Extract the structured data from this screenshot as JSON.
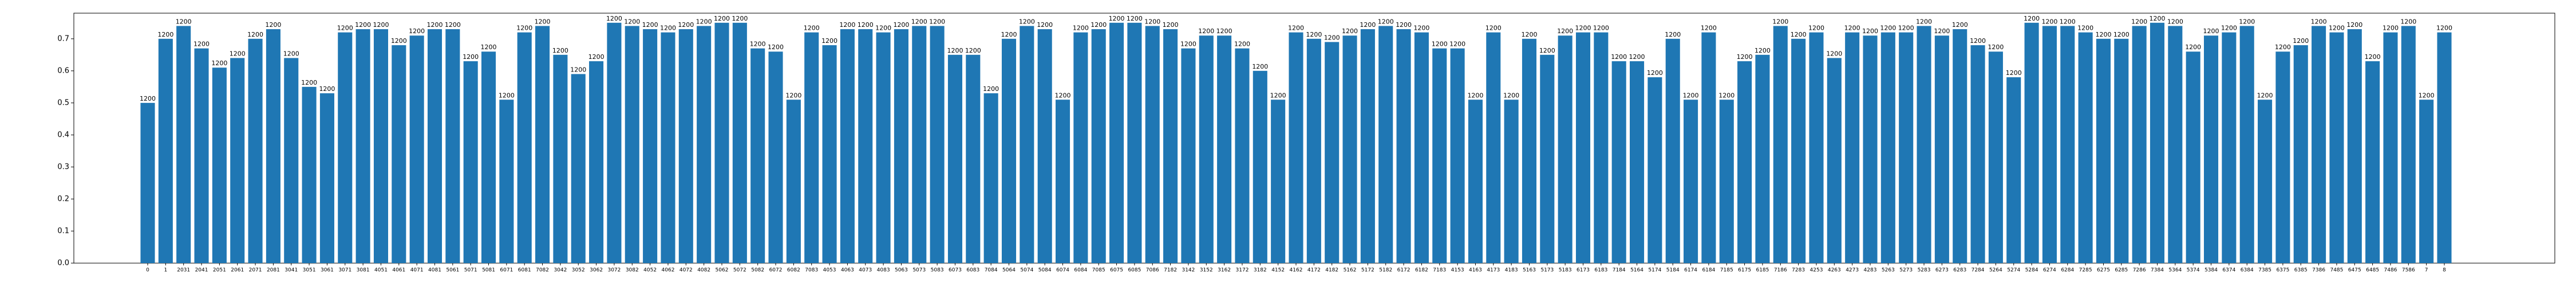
{
  "chart_data": {
    "type": "bar",
    "categories": [
      "0",
      "1",
      "2031",
      "2041",
      "2051",
      "2061",
      "2071",
      "2081",
      "3041",
      "3051",
      "3061",
      "3071",
      "3081",
      "4051",
      "4061",
      "4071",
      "4081",
      "5061",
      "5071",
      "5081",
      "6071",
      "6081",
      "7082",
      "3042",
      "3052",
      "3062",
      "3072",
      "3082",
      "4052",
      "4062",
      "4072",
      "4082",
      "5062",
      "5072",
      "5082",
      "6072",
      "6082",
      "7083",
      "4053",
      "4063",
      "4073",
      "4083",
      "5063",
      "5073",
      "5083",
      "6073",
      "6083",
      "7084",
      "5064",
      "5074",
      "5084",
      "6074",
      "6084",
      "7085",
      "6075",
      "6085",
      "7086",
      "7182",
      "3142",
      "3152",
      "3162",
      "3172",
      "3182",
      "4152",
      "4162",
      "4172",
      "4182",
      "5162",
      "5172",
      "5182",
      "6172",
      "6182",
      "7183",
      "4153",
      "4163",
      "4173",
      "4183",
      "5163",
      "5173",
      "5183",
      "6173",
      "6183",
      "7184",
      "5164",
      "5174",
      "5184",
      "6174",
      "6184",
      "7185",
      "6175",
      "6185",
      "7186",
      "7283",
      "4253",
      "4263",
      "4273",
      "4283",
      "5263",
      "5273",
      "5283",
      "6273",
      "6283",
      "7284",
      "5264",
      "5274",
      "5284",
      "6274",
      "6284",
      "7285",
      "6275",
      "6285",
      "7286",
      "7384",
      "5364",
      "5374",
      "5384",
      "6374",
      "6384",
      "7385",
      "6375",
      "6385",
      "7386",
      "7485",
      "6475",
      "6485",
      "7486",
      "7586",
      "7",
      "8"
    ],
    "values": [
      0.5,
      0.7,
      0.74,
      0.67,
      0.61,
      0.64,
      0.7,
      0.73,
      0.64,
      0.55,
      0.53,
      0.72,
      0.73,
      0.73,
      0.68,
      0.71,
      0.73,
      0.73,
      0.63,
      0.66,
      0.51,
      0.72,
      0.74,
      0.65,
      0.59,
      0.63,
      0.75,
      0.74,
      0.73,
      0.72,
      0.73,
      0.74,
      0.75,
      0.75,
      0.67,
      0.66,
      0.51,
      0.72,
      0.68,
      0.73,
      0.73,
      0.72,
      0.73,
      0.74,
      0.74,
      0.65,
      0.65,
      0.53,
      0.7,
      0.74,
      0.73,
      0.51,
      0.72,
      0.73,
      0.75,
      0.75,
      0.74,
      0.73,
      0.67,
      0.71,
      0.71,
      0.67,
      0.6,
      0.51,
      0.72,
      0.7,
      0.69,
      0.71,
      0.73,
      0.74,
      0.73,
      0.72,
      0.67,
      0.67,
      0.51,
      0.72,
      0.51,
      0.7,
      0.65,
      0.71,
      0.72,
      0.72,
      0.63,
      0.63,
      0.58,
      0.7,
      0.51,
      0.72,
      0.51,
      0.63,
      0.65,
      0.74,
      0.7,
      0.72,
      0.64,
      0.72,
      0.71,
      0.72,
      0.72,
      0.74,
      0.71,
      0.73,
      0.68,
      0.66,
      0.58,
      0.75,
      0.74,
      0.74,
      0.72,
      0.7,
      0.7,
      0.74,
      0.75,
      0.74,
      0.66,
      0.71,
      0.72,
      0.74,
      0.51,
      0.66,
      0.68,
      0.74,
      0.72,
      0.73,
      0.63,
      0.72,
      0.74,
      0.51,
      0.72
    ],
    "bar_labels": [
      1200,
      1200,
      1200,
      1200,
      1200,
      1200,
      1200,
      1200,
      1200,
      1200,
      1200,
      1200,
      1200,
      1200,
      1200,
      1200,
      1200,
      1200,
      1200,
      1200,
      1200,
      1200,
      1200,
      1200,
      1200,
      1200,
      1200,
      1200,
      1200,
      1200,
      1200,
      1200,
      1200,
      1200,
      1200,
      1200,
      1200,
      1200,
      1200,
      1200,
      1200,
      1200,
      1200,
      1200,
      1200,
      1200,
      1200,
      1200,
      1200,
      1200,
      1200,
      1200,
      1200,
      1200,
      1200,
      1200,
      1200,
      1200,
      1200,
      1200,
      1200,
      1200,
      1200,
      1200,
      1200,
      1200,
      1200,
      1200,
      1200,
      1200,
      1200,
      1200,
      1200,
      1200,
      1200,
      1200,
      1200,
      1200,
      1200,
      1200,
      1200,
      1200,
      1200,
      1200,
      1200,
      1200,
      1200,
      1200,
      1200,
      1200,
      1200,
      1200,
      1200,
      1200,
      1200,
      1200,
      1200,
      1200,
      1200,
      1200,
      1200,
      1200,
      1200,
      1200,
      1200,
      1200,
      1200,
      1200,
      1200,
      1200,
      1200,
      1200,
      1200,
      1200,
      1200,
      1200,
      1200,
      1200,
      1200,
      1200,
      1200,
      1200,
      1200,
      1200,
      1200,
      1200,
      1200,
      1200,
      1200
    ],
    "color": "#1f77b4",
    "ylim": [
      0,
      0.78
    ],
    "yticks": [
      {
        "value": 0,
        "label": "0.0"
      },
      {
        "value": 0.1,
        "label": "0.1"
      },
      {
        "value": 0.2,
        "label": "0.2"
      },
      {
        "value": 0.3,
        "label": "0.3"
      },
      {
        "value": 0.4,
        "label": "0.4"
      },
      {
        "value": 0.5,
        "label": "0.5"
      },
      {
        "value": 0.6,
        "label": "0.6"
      },
      {
        "value": 0.7,
        "label": "0.7"
      }
    ],
    "grid": false
  }
}
